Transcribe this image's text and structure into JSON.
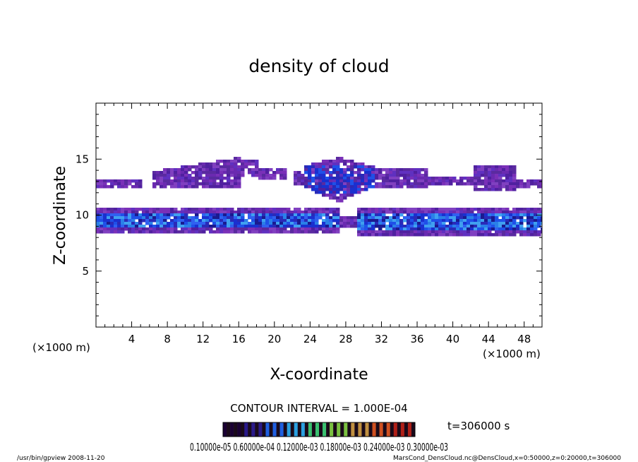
{
  "chart_data": {
    "type": "heatmap",
    "title": "density of cloud",
    "xlabel": "X-coordinate",
    "ylabel": "Z-coordinate",
    "x_unit": "(×1000 m)",
    "y_unit": "(×1000 m)",
    "xlim": [
      0,
      50
    ],
    "ylim": [
      0,
      20
    ],
    "x_ticks": [
      4,
      8,
      12,
      16,
      20,
      24,
      28,
      32,
      36,
      40,
      44,
      48
    ],
    "y_ticks": [
      5,
      10,
      15
    ],
    "time_label": "t=306000 s",
    "contour_interval": "CONTOUR INTERVAL = 1.000E-04",
    "colorbar_labels": "0.10000e-05 0.60000e-04 0.12000e-03 0.18000e-03 0.24000e-03 0.30000e-03",
    "colorbar_min": 1e-06,
    "colorbar_max": 0.0003,
    "colorbar_colors": [
      "#1a0033",
      "#2a1a8a",
      "#1f5fe0",
      "#2aa0e0",
      "#3ac070",
      "#7ac040",
      "#c09040",
      "#d05020",
      "#b02018"
    ],
    "cloud_layers": [
      {
        "name": "upper",
        "z_min": 11.5,
        "z_max": 15.5,
        "x_min": 0,
        "x_max": 50
      },
      {
        "name": "lower",
        "z_min": 8.3,
        "z_max": 10.8,
        "x_min": 0,
        "x_max": 50
      }
    ]
  },
  "footer": {
    "program": "/usr/bin/gpview   2008-11-20",
    "source": "MarsCond_DensCloud.nc@DensCloud,x=0:50000,z=0:20000,t=306000"
  }
}
